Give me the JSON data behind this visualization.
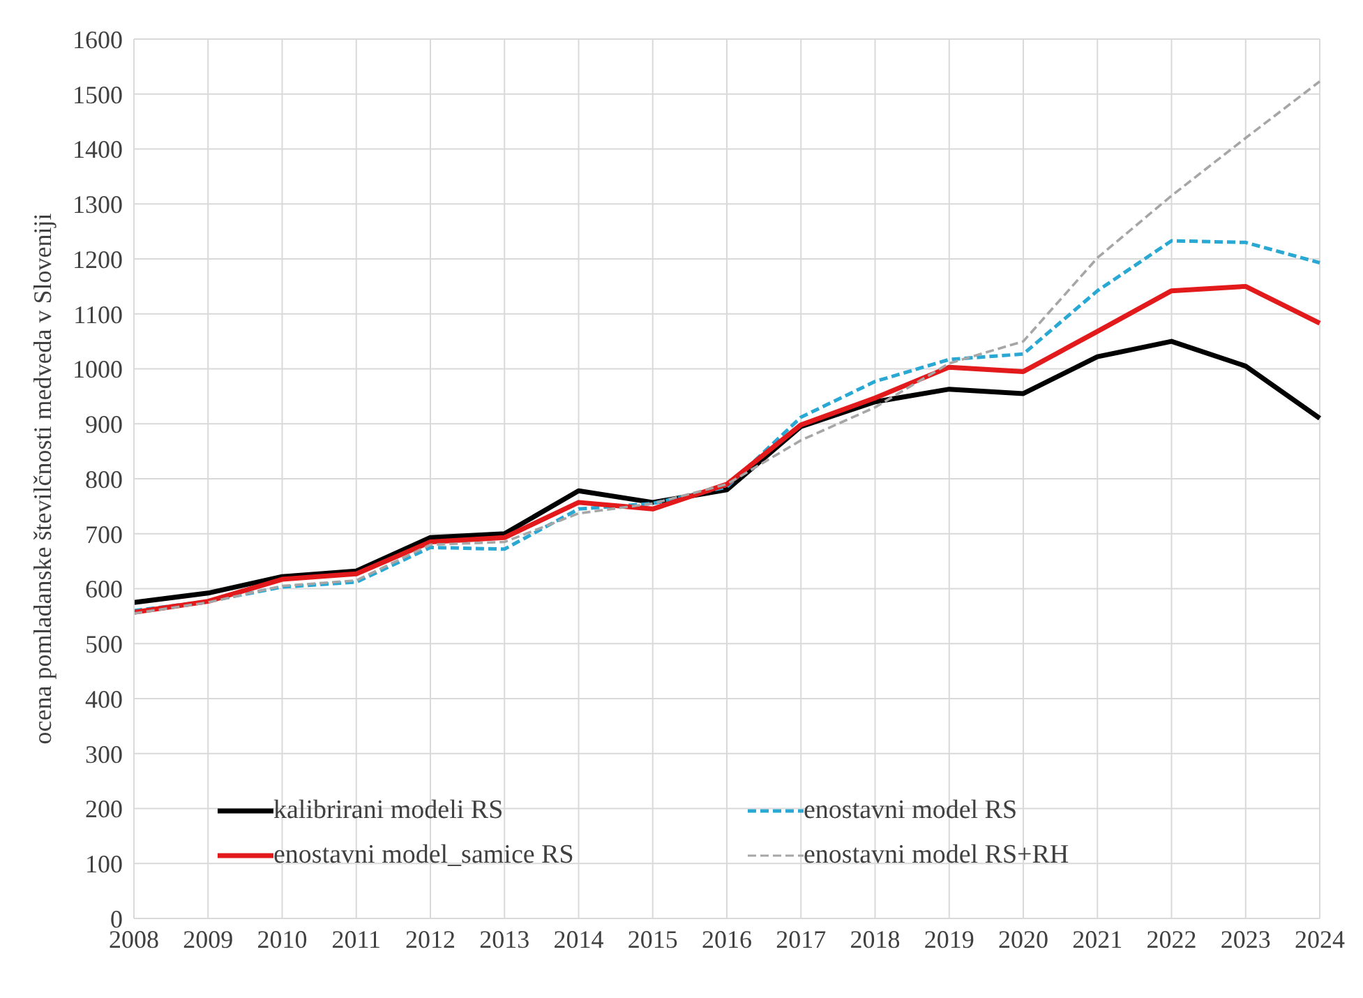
{
  "chart_data": {
    "type": "line",
    "ylabel": "ocena pomladanske številčnosti medveda v Sloveniji",
    "categories": [
      "2008",
      "2009",
      "2010",
      "2011",
      "2012",
      "2013",
      "2014",
      "2015",
      "2016",
      "2017",
      "2018",
      "2019",
      "2020",
      "2021",
      "2022",
      "2023",
      "2024"
    ],
    "ylim": [
      0,
      1600
    ],
    "yticks": [
      0,
      100,
      200,
      300,
      400,
      500,
      600,
      700,
      800,
      900,
      1000,
      1100,
      1200,
      1300,
      1400,
      1500,
      1600
    ],
    "grid": true,
    "legend": "bottom",
    "marker": "none",
    "series": [
      {
        "name": "kalibrirani modeli RS",
        "color": "#000000",
        "line_style": "solid",
        "values": [
          575,
          592,
          622,
          632,
          693,
          700,
          778,
          757,
          780,
          895,
          940,
          963,
          955,
          1022,
          1050,
          1005,
          910
        ]
      },
      {
        "name": "enostavni model RS",
        "color": "#29a8d4",
        "line_style": "dashed",
        "values": [
          560,
          577,
          603,
          612,
          675,
          672,
          745,
          755,
          785,
          912,
          977,
          1017,
          1027,
          1142,
          1233,
          1230,
          1193
        ]
      },
      {
        "name": "enostavni model_samice RS",
        "color": "#e31a1c",
        "line_style": "solid",
        "values": [
          557,
          577,
          617,
          627,
          685,
          693,
          757,
          745,
          790,
          898,
          947,
          1003,
          995,
          1068,
          1142,
          1150,
          1083
        ]
      },
      {
        "name": "enostavni model RS+RH",
        "color": "#a6a6a6",
        "line_style": "dashed",
        "values": [
          555,
          575,
          605,
          615,
          680,
          685,
          737,
          755,
          790,
          870,
          930,
          1010,
          1050,
          1202,
          1315,
          1420,
          1523
        ]
      }
    ]
  }
}
